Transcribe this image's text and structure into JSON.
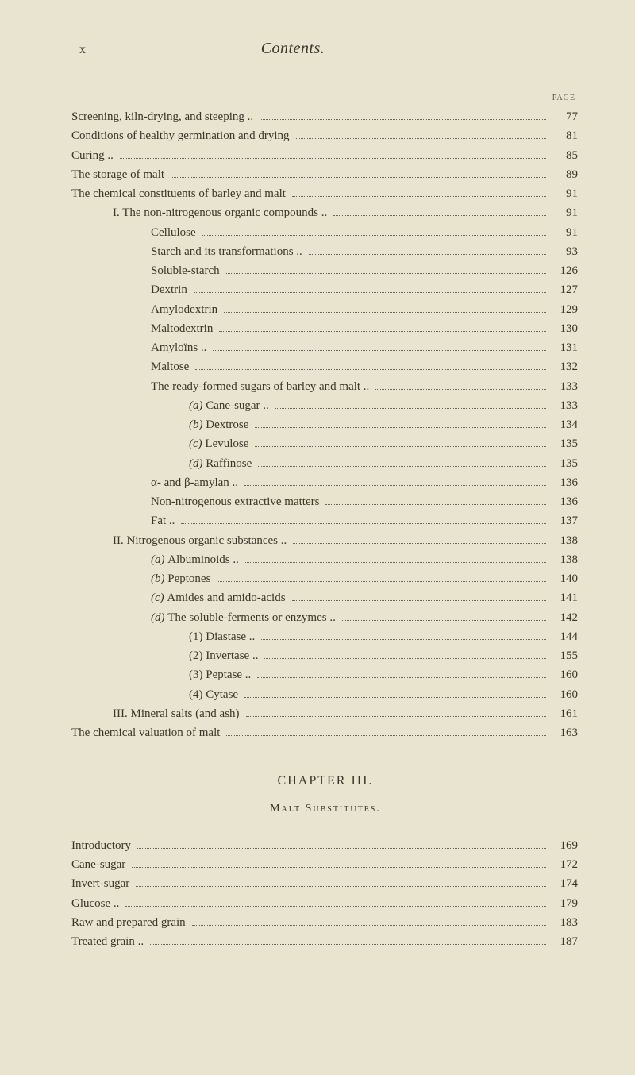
{
  "header": {
    "roman": "x",
    "title": "Contents."
  },
  "pageLabel": "PAGE",
  "toc": [
    {
      "text": "Screening, kiln-drying, and steeping ..",
      "page": "77",
      "indent": 0
    },
    {
      "text": "Conditions of healthy germination and drying",
      "page": "81",
      "indent": 0
    },
    {
      "text": "Curing ..",
      "page": "85",
      "indent": 0
    },
    {
      "text": "The storage of malt",
      "page": "89",
      "indent": 0
    },
    {
      "text": "The chemical constituents of barley and malt",
      "page": "91",
      "indent": 0
    },
    {
      "text": "I. The non-nitrogenous organic compounds ..",
      "page": "91",
      "indent": 1
    },
    {
      "text": "Cellulose",
      "page": "91",
      "indent": 2
    },
    {
      "text": "Starch and its transformations ..",
      "page": "93",
      "indent": 2
    },
    {
      "text": "Soluble-starch",
      "page": "126",
      "indent": 2
    },
    {
      "text": "Dextrin",
      "page": "127",
      "indent": 2
    },
    {
      "text": "Amylodextrin",
      "page": "129",
      "indent": 2
    },
    {
      "text": "Maltodextrin",
      "page": "130",
      "indent": 2
    },
    {
      "text": "Amyloïns ..",
      "page": "131",
      "indent": 2
    },
    {
      "text": "Maltose",
      "page": "132",
      "indent": 2
    },
    {
      "text": "The ready-formed sugars of barley and malt ..",
      "page": "133",
      "indent": 2
    },
    {
      "text": "(a) Cane-sugar ..",
      "page": "133",
      "indent": 3,
      "italic": true
    },
    {
      "text": "(b) Dextrose",
      "page": "134",
      "indent": 3,
      "italic": true
    },
    {
      "text": "(c) Levulose",
      "page": "135",
      "indent": 3,
      "italic": true
    },
    {
      "text": "(d) Raffinose",
      "page": "135",
      "indent": 3,
      "italic": true
    },
    {
      "text": "α- and β-amylan ..",
      "page": "136",
      "indent": 2
    },
    {
      "text": "Non-nitrogenous extractive matters",
      "page": "136",
      "indent": 2
    },
    {
      "text": "Fat ..",
      "page": "137",
      "indent": 2
    },
    {
      "text": "II. Nitrogenous organic substances ..",
      "page": "138",
      "indent": 1
    },
    {
      "text": "(a) Albuminoids ..",
      "page": "138",
      "indent": 2,
      "italic": true
    },
    {
      "text": "(b) Peptones",
      "page": "140",
      "indent": 2,
      "italic": true
    },
    {
      "text": "(c) Amides and amido-acids",
      "page": "141",
      "indent": 2,
      "italic": true
    },
    {
      "text": "(d) The soluble-ferments or enzymes ..",
      "page": "142",
      "indent": 2,
      "italic": true
    },
    {
      "text": "(1) Diastase ..",
      "page": "144",
      "indent": 3
    },
    {
      "text": "(2) Invertase ..",
      "page": "155",
      "indent": 3
    },
    {
      "text": "(3) Peptase ..",
      "page": "160",
      "indent": 3
    },
    {
      "text": "(4) Cytase",
      "page": "160",
      "indent": 3
    },
    {
      "text": "III. Mineral salts (and ash)",
      "page": "161",
      "indent": 1
    },
    {
      "text": "The chemical valuation of malt",
      "page": "163",
      "indent": 0
    }
  ],
  "chapter": {
    "heading": "CHAPTER III.",
    "sub": "Malt Substitutes."
  },
  "toc2": [
    {
      "text": "Introductory",
      "page": "169",
      "indent": 0
    },
    {
      "text": "Cane-sugar",
      "page": "172",
      "indent": 0
    },
    {
      "text": "Invert-sugar",
      "page": "174",
      "indent": 0
    },
    {
      "text": "Glucose ..",
      "page": "179",
      "indent": 0
    },
    {
      "text": "Raw and prepared grain",
      "page": "183",
      "indent": 0
    },
    {
      "text": "Treated grain ..",
      "page": "187",
      "indent": 0
    }
  ]
}
